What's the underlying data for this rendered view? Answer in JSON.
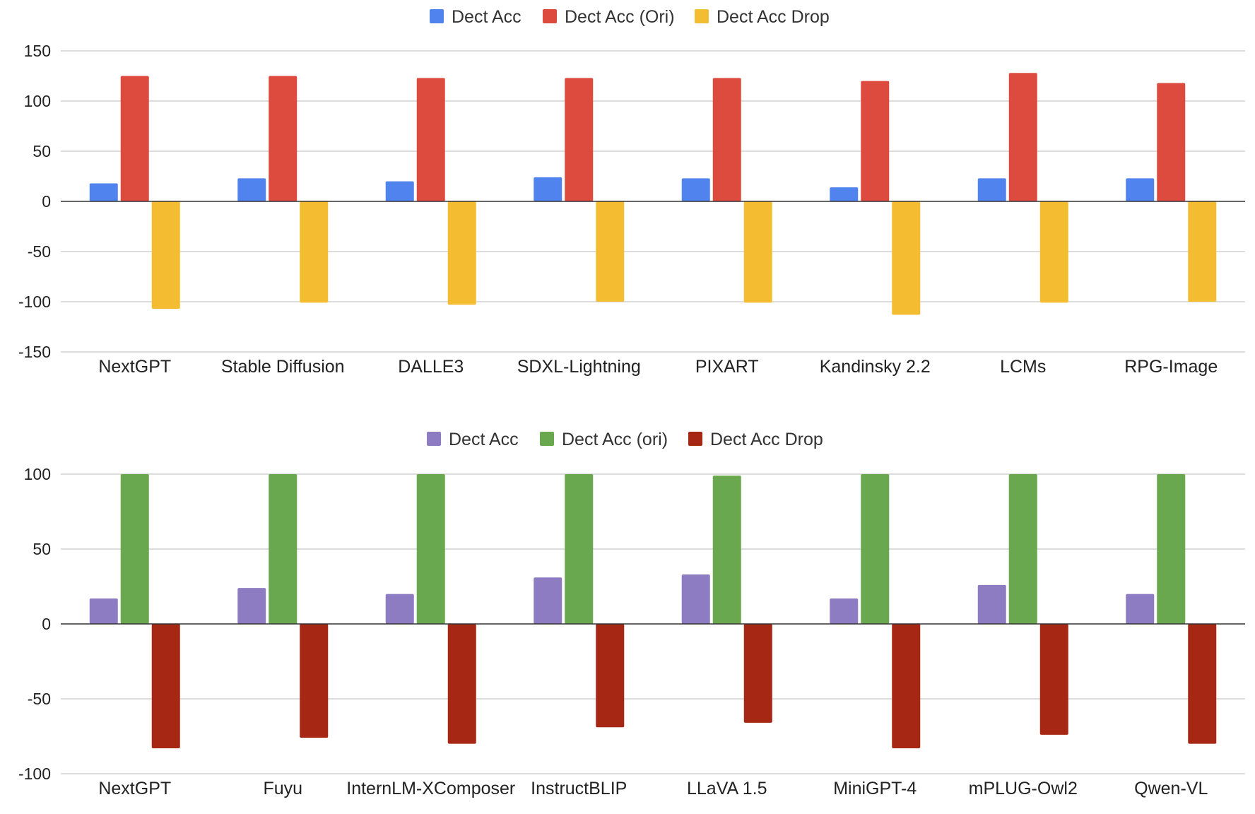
{
  "chart_data": [
    {
      "type": "bar",
      "categories": [
        "NextGPT",
        "Stable Diffusion",
        "DALLE3",
        "SDXL-Lightning",
        "PIXART",
        "Kandinsky 2.2",
        "LCMs",
        "RPG-Image"
      ],
      "series": [
        {
          "name": "Dect Acc",
          "color": "#5183ee",
          "values": [
            18,
            23,
            20,
            24,
            23,
            14,
            23,
            23
          ]
        },
        {
          "name": "Dect Acc (Ori)",
          "color": "#dd4b3e",
          "values": [
            125,
            125,
            123,
            123,
            123,
            120,
            128,
            118
          ]
        },
        {
          "name": "Dect Acc Drop",
          "color": "#f4bd31",
          "values": [
            -107,
            -101,
            -103,
            -100,
            -101,
            -113,
            -101,
            -100
          ]
        }
      ],
      "yticks": [
        "150",
        "100",
        "50",
        "0",
        "-50",
        "-100",
        "-150"
      ],
      "ylim": [
        -150,
        150
      ],
      "grid": true,
      "legend": "top-center"
    },
    {
      "type": "bar",
      "categories": [
        "NextGPT",
        "Fuyu",
        "InternLM-XComposer",
        "InstructBLIP",
        "LLaVA 1.5",
        "MiniGPT-4",
        "mPLUG-Owl2",
        "Qwen-VL"
      ],
      "series": [
        {
          "name": "Dect Acc",
          "color": "#8e7cc3",
          "values": [
            17,
            24,
            20,
            31,
            33,
            17,
            26,
            20
          ]
        },
        {
          "name": "Dect Acc (ori)",
          "color": "#6aa84f",
          "values": [
            100,
            100,
            100,
            100,
            99,
            100,
            100,
            100
          ]
        },
        {
          "name": "Dect Acc Drop",
          "color": "#a52714",
          "values": [
            -83,
            -76,
            -80,
            -69,
            -66,
            -83,
            -74,
            -80
          ]
        }
      ],
      "yticks": [
        "100",
        "50",
        "0",
        "-50",
        "-100"
      ],
      "ylim": [
        -100,
        100
      ],
      "grid": true,
      "legend": "top-center"
    }
  ]
}
